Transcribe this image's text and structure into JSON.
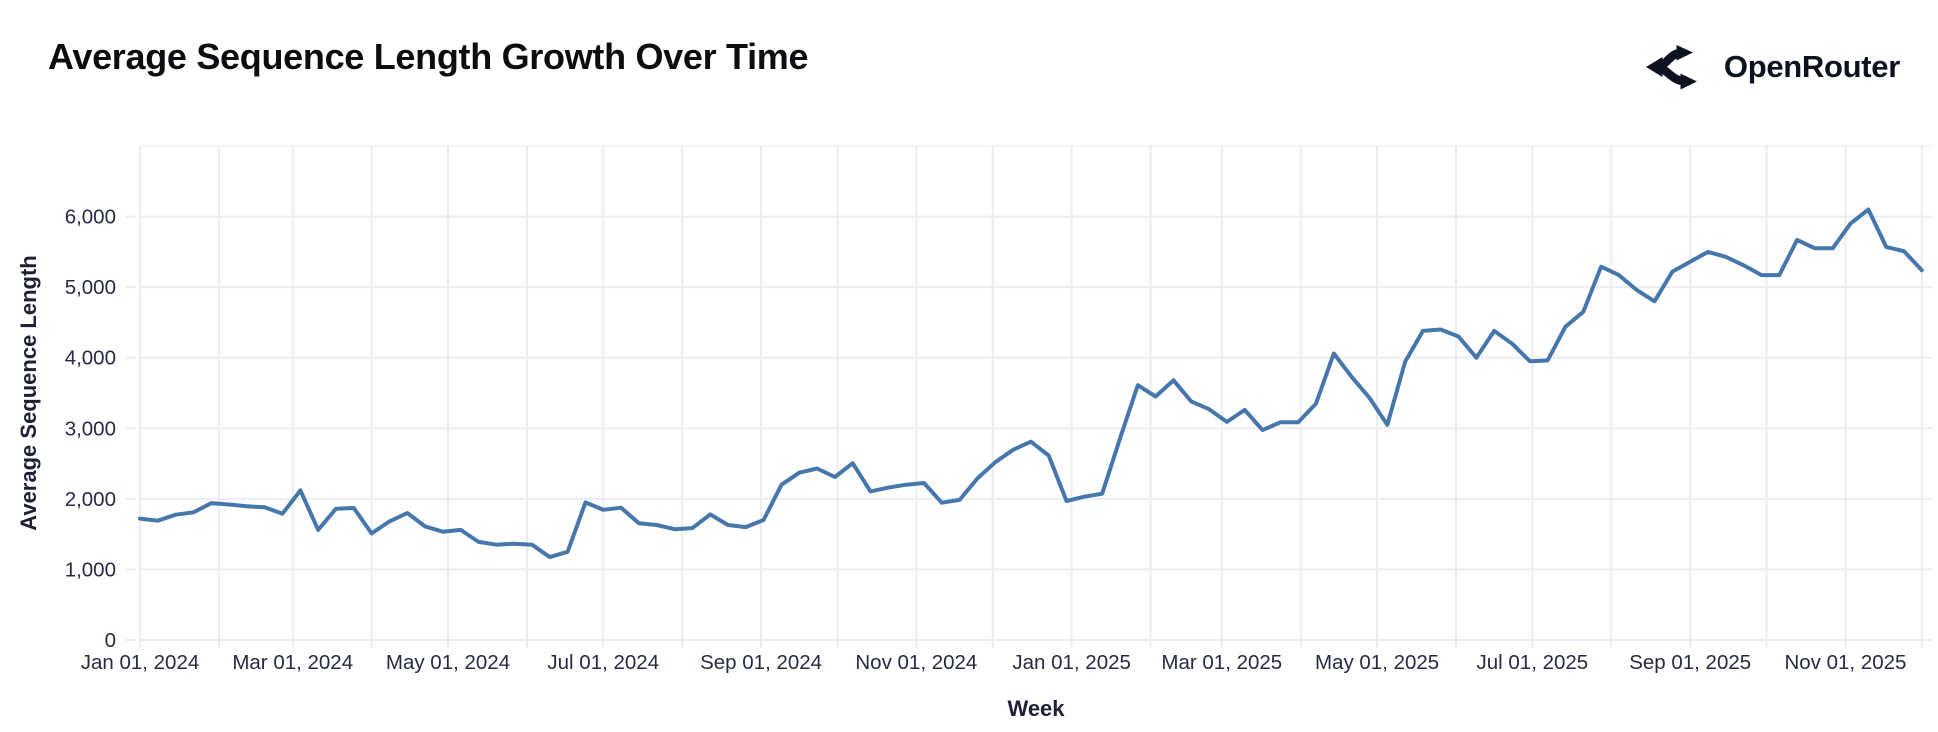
{
  "header": {
    "title": "Average Sequence Length Growth Over Time",
    "brand": "OpenRouter"
  },
  "colors": {
    "line": "#4677ac",
    "grid": "#ebedf2",
    "grid_faint": "#f4f5f9",
    "tick_text": "#262b43",
    "axis_title_text": "#1d2136",
    "title_text": "#0c0d10",
    "brand_color": "#0d1220"
  },
  "chart_data": {
    "type": "line",
    "title": "Average Sequence Length Growth Over Time",
    "xlabel": "Week",
    "ylabel": "Average Sequence Length",
    "grid": true,
    "legend": false,
    "ylim": [
      0,
      7000
    ],
    "x_domain": [
      "2024-01-01",
      "2025-12-05"
    ],
    "y_ticks": [
      {
        "value": 0,
        "label": "0"
      },
      {
        "value": 1000,
        "label": "1,000"
      },
      {
        "value": 2000,
        "label": "2,000"
      },
      {
        "value": 3000,
        "label": "3,000"
      },
      {
        "value": 4000,
        "label": "4,000"
      },
      {
        "value": 5000,
        "label": "5,000"
      },
      {
        "value": 6000,
        "label": "6,000"
      }
    ],
    "y_gridlines": [
      0,
      1000,
      2000,
      3000,
      4000,
      5000,
      6000,
      7000
    ],
    "x_gridlines": [
      "2024-01-01",
      "2024-02-01",
      "2024-03-01",
      "2024-04-01",
      "2024-05-01",
      "2024-06-01",
      "2024-07-01",
      "2024-08-01",
      "2024-09-01",
      "2024-10-01",
      "2024-11-01",
      "2024-12-01",
      "2025-01-01",
      "2025-02-01",
      "2025-03-01",
      "2025-04-01",
      "2025-05-01",
      "2025-06-01",
      "2025-07-01",
      "2025-08-01",
      "2025-09-01",
      "2025-10-01",
      "2025-11-01",
      "2025-12-01"
    ],
    "x_ticks": [
      {
        "date": "2024-01-01",
        "label": "Jan 01, 2024"
      },
      {
        "date": "2024-03-01",
        "label": "Mar 01, 2024"
      },
      {
        "date": "2024-05-01",
        "label": "May 01, 2024"
      },
      {
        "date": "2024-07-01",
        "label": "Jul 01, 2024"
      },
      {
        "date": "2024-09-01",
        "label": "Sep 01, 2024"
      },
      {
        "date": "2024-11-01",
        "label": "Nov 01, 2024"
      },
      {
        "date": "2025-01-01",
        "label": "Jan 01, 2025"
      },
      {
        "date": "2025-03-01",
        "label": "Mar 01, 2025"
      },
      {
        "date": "2025-05-01",
        "label": "May 01, 2025"
      },
      {
        "date": "2025-07-01",
        "label": "Jul 01, 2025"
      },
      {
        "date": "2025-09-01",
        "label": "Sep 01, 2025"
      },
      {
        "date": "2025-11-01",
        "label": "Nov 01, 2025"
      }
    ],
    "series": [
      {
        "name": "Average Sequence Length",
        "interval": "weekly",
        "dates": [
          "2024-01-01",
          "2024-01-08",
          "2024-01-15",
          "2024-01-22",
          "2024-01-29",
          "2024-02-05",
          "2024-02-12",
          "2024-02-19",
          "2024-02-26",
          "2024-03-04",
          "2024-03-11",
          "2024-03-18",
          "2024-03-25",
          "2024-04-01",
          "2024-04-08",
          "2024-04-15",
          "2024-04-22",
          "2024-04-29",
          "2024-05-06",
          "2024-05-13",
          "2024-05-20",
          "2024-05-27",
          "2024-06-03",
          "2024-06-10",
          "2024-06-17",
          "2024-06-24",
          "2024-07-01",
          "2024-07-08",
          "2024-07-15",
          "2024-07-22",
          "2024-07-29",
          "2024-08-05",
          "2024-08-12",
          "2024-08-19",
          "2024-08-26",
          "2024-09-02",
          "2024-09-09",
          "2024-09-16",
          "2024-09-23",
          "2024-09-30",
          "2024-10-07",
          "2024-10-14",
          "2024-10-21",
          "2024-10-28",
          "2024-11-04",
          "2024-11-11",
          "2024-11-18",
          "2024-11-25",
          "2024-12-02",
          "2024-12-09",
          "2024-12-16",
          "2024-12-23",
          "2024-12-30",
          "2025-01-06",
          "2025-01-13",
          "2025-01-20",
          "2025-01-27",
          "2025-02-03",
          "2025-02-10",
          "2025-02-17",
          "2025-02-24",
          "2025-03-03",
          "2025-03-10",
          "2025-03-17",
          "2025-03-24",
          "2025-03-31",
          "2025-04-07",
          "2025-04-14",
          "2025-04-21",
          "2025-04-28",
          "2025-05-05",
          "2025-05-12",
          "2025-05-19",
          "2025-05-26",
          "2025-06-02",
          "2025-06-09",
          "2025-06-16",
          "2025-06-23",
          "2025-06-30",
          "2025-07-07",
          "2025-07-14",
          "2025-07-21",
          "2025-07-28",
          "2025-08-04",
          "2025-08-11",
          "2025-08-18",
          "2025-08-25",
          "2025-09-01",
          "2025-09-08",
          "2025-09-15",
          "2025-09-22",
          "2025-09-29",
          "2025-10-06",
          "2025-10-13",
          "2025-10-20",
          "2025-10-27",
          "2025-11-03",
          "2025-11-10",
          "2025-11-17",
          "2025-11-24",
          "2025-12-01"
        ],
        "values": [
          1720,
          1690,
          1775,
          1810,
          1940,
          1920,
          1895,
          1880,
          1790,
          2120,
          1560,
          1860,
          1870,
          1510,
          1680,
          1800,
          1610,
          1535,
          1560,
          1390,
          1350,
          1365,
          1350,
          1175,
          1250,
          1950,
          1845,
          1875,
          1655,
          1630,
          1570,
          1585,
          1780,
          1630,
          1600,
          1700,
          2200,
          2370,
          2430,
          2310,
          2505,
          2105,
          2160,
          2200,
          2225,
          1945,
          1985,
          2290,
          2520,
          2695,
          2810,
          2615,
          1970,
          2030,
          2075,
          2855,
          3610,
          3450,
          3680,
          3380,
          3270,
          3090,
          3260,
          2975,
          3085,
          3085,
          3350,
          4060,
          3730,
          3430,
          3050,
          3940,
          4380,
          4400,
          4300,
          4000,
          4380,
          4200,
          3950,
          3960,
          4440,
          4650,
          5290,
          5170,
          4960,
          4800,
          5220,
          5360,
          5500,
          5430,
          5310,
          5170,
          5170,
          5670,
          5550,
          5550,
          5900,
          6100,
          5570,
          5510,
          5240
        ]
      }
    ]
  }
}
